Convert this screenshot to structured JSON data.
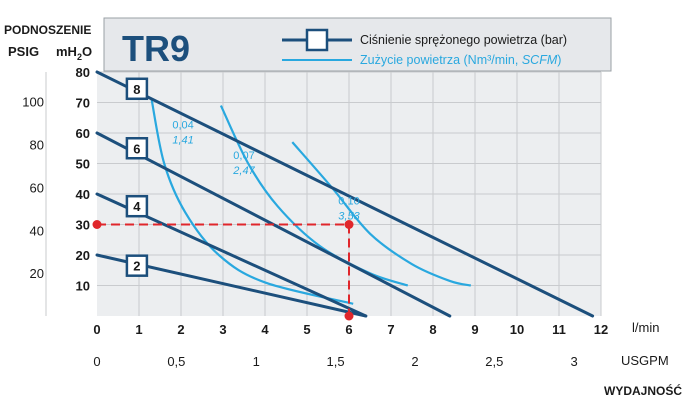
{
  "chart_data": {
    "type": "line",
    "title": "TR9",
    "header_label": "PODNOSZENIE",
    "y_label_psig": "PSIG",
    "y_label_mh2o_main": "mH",
    "y_label_mh2o_sub": "2",
    "y_label_mh2o_end": "O",
    "x_unit_lmin": "l/min",
    "x_unit_usgpm": "USGPM",
    "x_label": "WYDAJNOŚĆ",
    "legend": {
      "pressure": "Ciśnienie sprężonego powietrza (bar)",
      "consumption_main": "Zużycie powietrza (Nm³/min, ",
      "consumption_italic": "SCFM",
      "consumption_end": ")"
    },
    "xlim": [
      0,
      12
    ],
    "ylim_mh2o": [
      0,
      80
    ],
    "x_ticks": [
      "0",
      "1",
      "2",
      "3",
      "4",
      "5",
      "6",
      "7",
      "8",
      "9",
      "10",
      "11",
      "12"
    ],
    "y_ticks_mh2o": [
      "10",
      "20",
      "30",
      "40",
      "50",
      "60",
      "70",
      "80"
    ],
    "usgpm_ticks": [
      {
        "label": "0",
        "lmin": 0
      },
      {
        "label": "0,5",
        "lmin": 1.89
      },
      {
        "label": "1",
        "lmin": 3.79
      },
      {
        "label": "1,5",
        "lmin": 5.68
      },
      {
        "label": "2",
        "lmin": 7.57
      },
      {
        "label": "2,5",
        "lmin": 9.46
      },
      {
        "label": "3",
        "lmin": 11.36
      }
    ],
    "psig_ticks": [
      {
        "label": "100",
        "mh2o": 70.3
      },
      {
        "label": "80",
        "mh2o": 56.2
      },
      {
        "label": "60",
        "mh2o": 42.2
      },
      {
        "label": "40",
        "mh2o": 28.1
      },
      {
        "label": "20",
        "mh2o": 14.1
      }
    ],
    "pressure_series": [
      {
        "label": "8",
        "points": [
          [
            0,
            80
          ],
          [
            11.8,
            0
          ]
        ],
        "label_at": [
          0.95,
          74.5
        ]
      },
      {
        "label": "6",
        "points": [
          [
            0,
            60
          ],
          [
            8.4,
            0
          ]
        ],
        "label_at": [
          0.95,
          55
        ]
      },
      {
        "label": "4",
        "points": [
          [
            0,
            40
          ],
          [
            6.4,
            0
          ]
        ],
        "label_at": [
          0.95,
          36
        ]
      },
      {
        "label": "2",
        "points": [
          [
            0,
            20
          ],
          [
            6.4,
            0
          ]
        ],
        "label_at": [
          0.95,
          16.5
        ]
      }
    ],
    "consumption_series": [
      {
        "label_main": "0,04",
        "label_italic": "1,41",
        "label_at": [
          2.05,
          61.5
        ],
        "points": [
          [
            1.3,
            71
          ],
          [
            1.6,
            50
          ],
          [
            2.1,
            34
          ],
          [
            2.9,
            20
          ],
          [
            4.0,
            11
          ],
          [
            6.1,
            4
          ]
        ]
      },
      {
        "label_main": "0,07",
        "label_italic": "2,47",
        "label_at": [
          3.5,
          51.5
        ],
        "points": [
          [
            2.95,
            69
          ],
          [
            3.6,
            50
          ],
          [
            4.3,
            36
          ],
          [
            5.3,
            23
          ],
          [
            6.5,
            14
          ],
          [
            7.4,
            10
          ]
        ]
      },
      {
        "label_main": "0,10",
        "label_italic": "3,53",
        "label_at": [
          6.0,
          36.5
        ],
        "points": [
          [
            4.65,
            57
          ],
          [
            5.6,
            42
          ],
          [
            6.5,
            27
          ],
          [
            7.5,
            17
          ],
          [
            8.4,
            11.5
          ],
          [
            8.9,
            10
          ]
        ]
      }
    ],
    "operating_point": {
      "x": 6,
      "y": 30
    },
    "colors": {
      "pressure": "#1c4f7c",
      "consumption": "#29a8df",
      "grid": "#c9cbce",
      "plot_bg": "#eceef0",
      "marker": "#e0262b",
      "header_bg": "#e6e8eb"
    },
    "grid": true
  }
}
